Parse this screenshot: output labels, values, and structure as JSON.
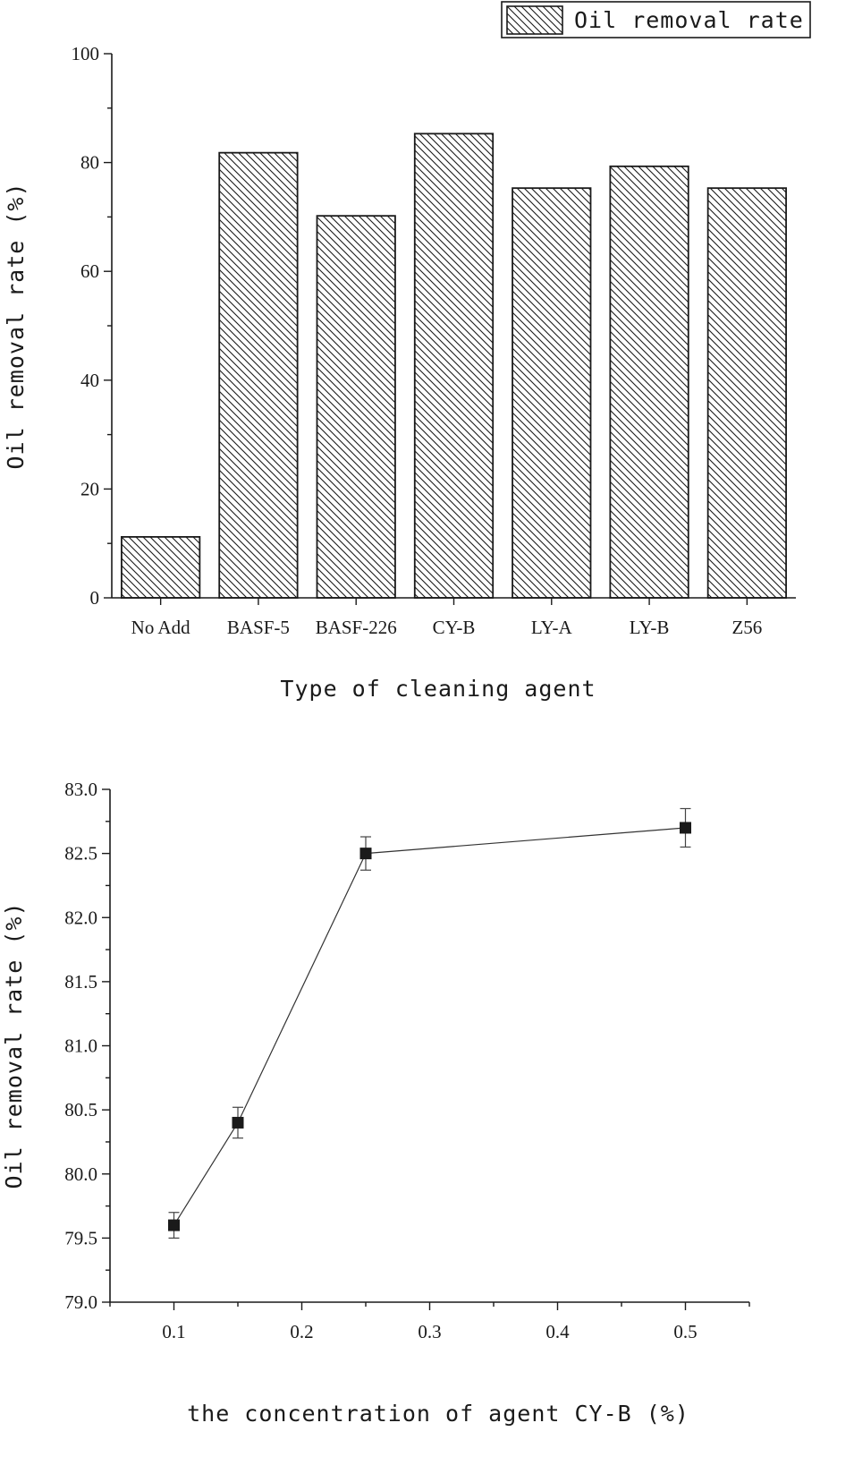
{
  "chart_data": [
    {
      "type": "bar",
      "title": "",
      "xlabel": "Type of cleaning agent",
      "ylabel": "Oil removal rate (%)",
      "categories": [
        "No Add",
        "BASF-5",
        "BASF-226",
        "CY-B",
        "LY-A",
        "LY-B",
        "Z56"
      ],
      "series": [
        {
          "name": "Oil removal rate",
          "values": [
            11.2,
            81.8,
            70.2,
            85.3,
            75.3,
            79.3,
            75.3
          ]
        }
      ],
      "ylim": [
        0,
        100
      ],
      "yticks": [
        "0",
        "20",
        "40",
        "60",
        "80",
        "100"
      ],
      "grid": false,
      "legend_position": "top-right",
      "fill_pattern": "diagonal hatch"
    },
    {
      "type": "line",
      "title": "",
      "xlabel": "the concentration of agent CY-B (%)",
      "ylabel": "Oil removal rate (%)",
      "x": [
        0.1,
        0.15,
        0.25,
        0.5
      ],
      "y": [
        79.6,
        80.4,
        82.5,
        82.7
      ],
      "yerr": [
        0.1,
        0.12,
        0.13,
        0.15
      ],
      "xlim": [
        0.05,
        0.55
      ],
      "ylim": [
        79.0,
        83.0
      ],
      "xticks": [
        "0.1",
        "0.2",
        "0.3",
        "0.4",
        "0.5"
      ],
      "xtick_values": [
        0.1,
        0.2,
        0.3,
        0.4,
        0.5
      ],
      "yticks": [
        "79.0",
        "79.5",
        "80.0",
        "80.5",
        "81.0",
        "81.5",
        "82.0",
        "82.5",
        "83.0"
      ],
      "ytick_values": [
        79.0,
        79.5,
        80.0,
        80.5,
        81.0,
        81.5,
        82.0,
        82.5,
        83.0
      ],
      "marker": "square",
      "grid": false
    }
  ],
  "colors": {
    "ink": "#1a1a1a",
    "line": "#333333",
    "background": "#ffffff"
  }
}
